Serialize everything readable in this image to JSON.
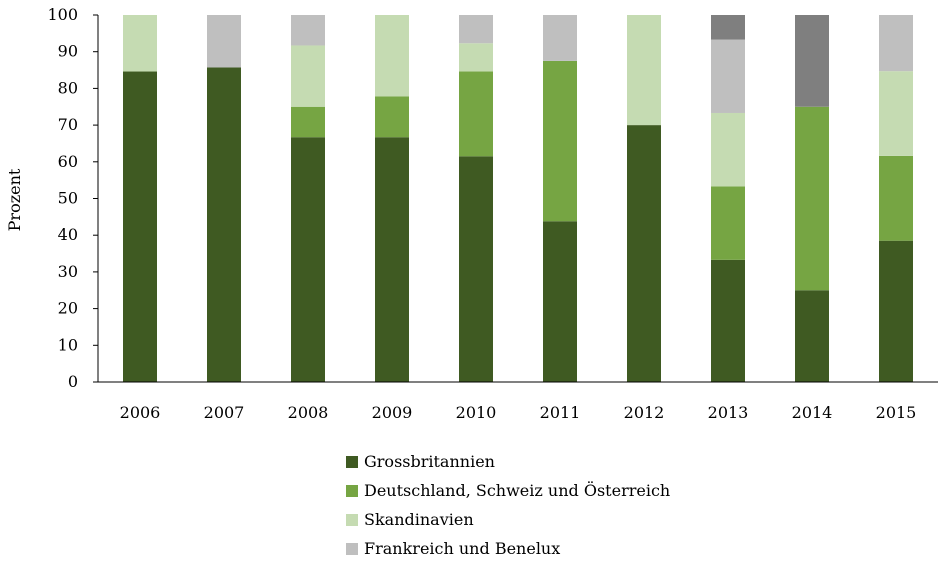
{
  "chart_data": {
    "type": "bar",
    "stacked": true,
    "percent": true,
    "ylabel": "Prozent",
    "xlabel": "",
    "title": "",
    "ylim": [
      0,
      100
    ],
    "yticks": [
      0,
      10,
      20,
      30,
      40,
      50,
      60,
      70,
      80,
      90,
      100
    ],
    "grid": false,
    "legend_position": "bottom",
    "categories": [
      "2006",
      "2007",
      "2008",
      "2009",
      "2010",
      "2011",
      "2012",
      "2013",
      "2014",
      "2015"
    ],
    "series": [
      {
        "name": "Grossbritannien",
        "color": "#3f5a22",
        "values": [
          84.6,
          85.7,
          66.7,
          66.7,
          61.5,
          43.8,
          70.0,
          33.3,
          25.0,
          38.5
        ],
        "in_legend": true
      },
      {
        "name": "Deutschland, Schweiz und Österreich",
        "color": "#76a543",
        "values": [
          0,
          0,
          8.3,
          11.1,
          23.1,
          43.7,
          0,
          20.0,
          50.0,
          23.1
        ],
        "in_legend": true
      },
      {
        "name": "Skandinavien",
        "color": "#c5dbb2",
        "values": [
          15.4,
          0,
          16.7,
          22.2,
          7.7,
          0,
          30.0,
          20.0,
          0,
          23.1
        ],
        "in_legend": true
      },
      {
        "name": "Frankreich und Benelux",
        "color": "#bfbfbf",
        "values": [
          0,
          14.3,
          8.3,
          0,
          7.7,
          12.5,
          0,
          20.0,
          0,
          15.3
        ],
        "in_legend": true
      },
      {
        "name": "",
        "color": "#7f7f7f",
        "values": [
          0,
          0,
          0,
          0,
          0,
          0,
          0,
          6.7,
          25.0,
          0
        ],
        "in_legend": false
      }
    ]
  }
}
